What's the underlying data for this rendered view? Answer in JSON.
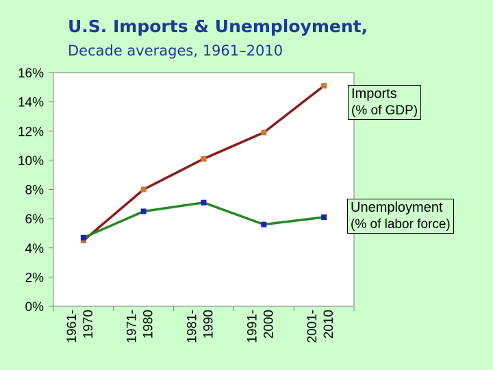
{
  "title": "U.S. Imports & Unemployment,",
  "subtitle": "Decade averages, 1961–2010",
  "chart_data": {
    "type": "line",
    "categories": [
      "1961-1970",
      "1971-1980",
      "1981-1990",
      "1991-2000",
      "2001-2010"
    ],
    "category_lines": [
      [
        "1961-",
        "1970"
      ],
      [
        "1971-",
        "1980"
      ],
      [
        "1981-",
        "1990"
      ],
      [
        "1991-",
        "2000"
      ],
      [
        "2001-",
        "2010"
      ]
    ],
    "ylim": [
      0,
      16
    ],
    "y_ticks": [
      0,
      2,
      4,
      6,
      8,
      10,
      12,
      14,
      16
    ],
    "y_tick_labels": [
      "0%",
      "2%",
      "4%",
      "6%",
      "8%",
      "10%",
      "12%",
      "14%",
      "16%"
    ],
    "grid": false,
    "series": [
      {
        "name": "Imports",
        "unit_label": "(% of GDP)",
        "values": [
          4.5,
          8.0,
          10.1,
          11.9,
          15.1
        ],
        "line_color": "#8b1a1a",
        "marker_color": "#cc7a2a"
      },
      {
        "name": "Unemployment",
        "unit_label": "(% of labor force)",
        "values": [
          4.7,
          6.5,
          7.1,
          5.6,
          6.1
        ],
        "line_color": "#228b22",
        "marker_color": "#1f1fbf"
      }
    ]
  }
}
